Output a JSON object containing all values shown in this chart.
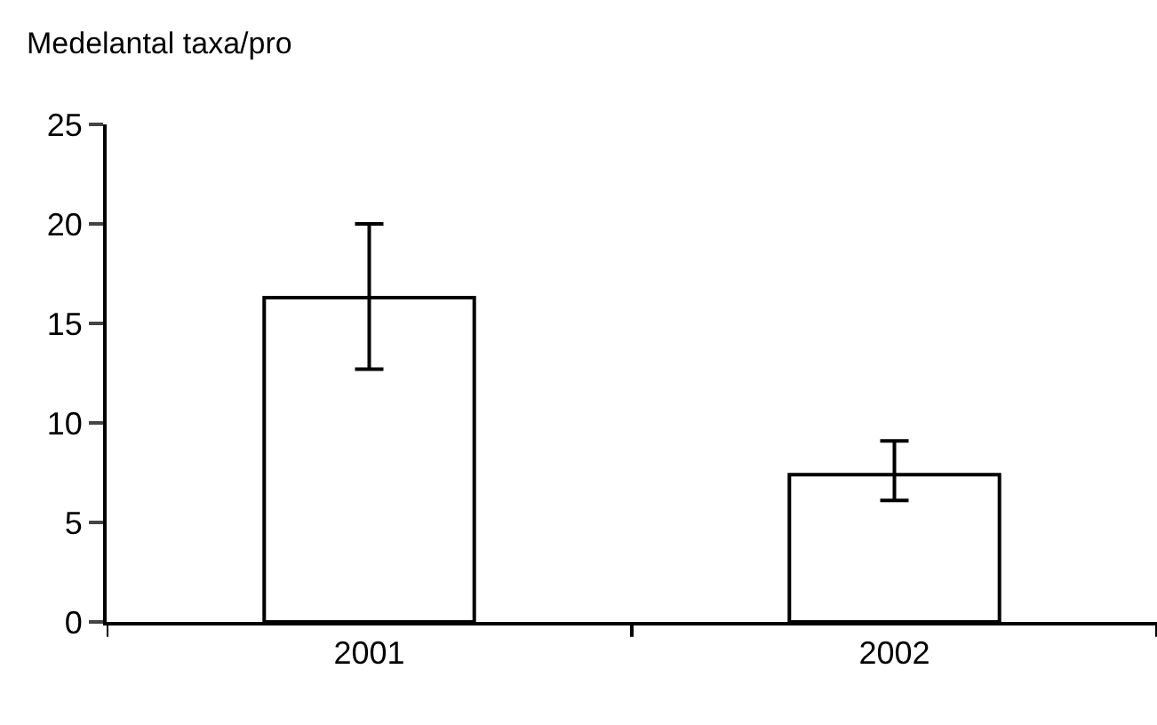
{
  "chart_data": {
    "type": "bar",
    "ylabel": "Medelantal taxa/pro",
    "categories": [
      "2001",
      "2002"
    ],
    "series": [
      {
        "color": "#ffffff",
        "values": [
          16.3,
          7.4
        ],
        "errors": [
          [
            12.7,
            20.0
          ],
          [
            6.1,
            9.1
          ]
        ]
      }
    ],
    "ylim": [
      0,
      25
    ],
    "yticks": [
      0,
      5,
      10,
      15,
      20,
      25
    ]
  }
}
